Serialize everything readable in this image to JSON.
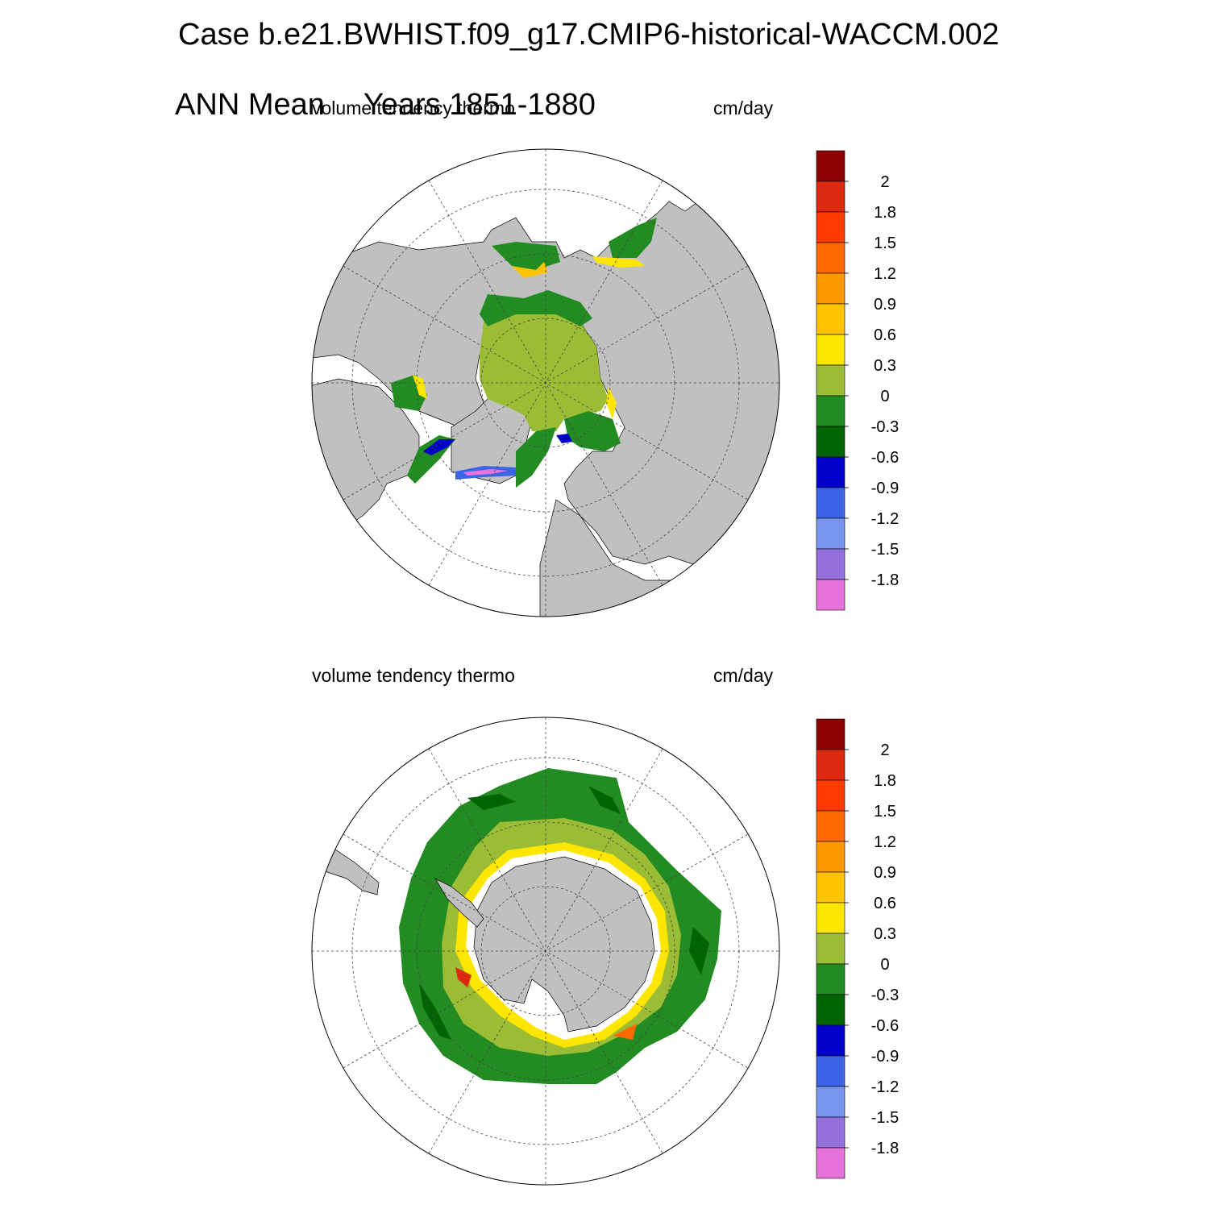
{
  "header": {
    "line1": "Case b.e21.BWHIST.f09_g17.CMIP6-historical-WACCM.002",
    "line2_left": "ANN Mean",
    "line2_right": "Years 1851-1880"
  },
  "panels": [
    {
      "id": "north",
      "hemisphere": "north",
      "field_label": "volume tendency thermo",
      "units_label": "cm/day"
    },
    {
      "id": "south",
      "hemisphere": "south",
      "field_label": "volume tendency thermo",
      "units_label": "cm/day"
    }
  ],
  "colorbar": {
    "levels": [
      "2",
      "1.8",
      "1.5",
      "1.2",
      "0.9",
      "0.6",
      "0.3",
      "0",
      "-0.3",
      "-0.6",
      "-0.9",
      "-1.2",
      "-1.5",
      "-1.8"
    ],
    "colors": [
      "#8b0000",
      "#dc2a10",
      "#ff3c00",
      "#ff6a00",
      "#ff9900",
      "#ffc400",
      "#ffe600",
      "#9bbd35",
      "#228b22",
      "#006400",
      "#0000c8",
      "#3c64e6",
      "#7896f0",
      "#9370db",
      "#e673dc"
    ]
  },
  "colors": {
    "land": "#c0c0c0",
    "ocean_no_ice": "#ffffff",
    "graticule": "#444444"
  }
}
